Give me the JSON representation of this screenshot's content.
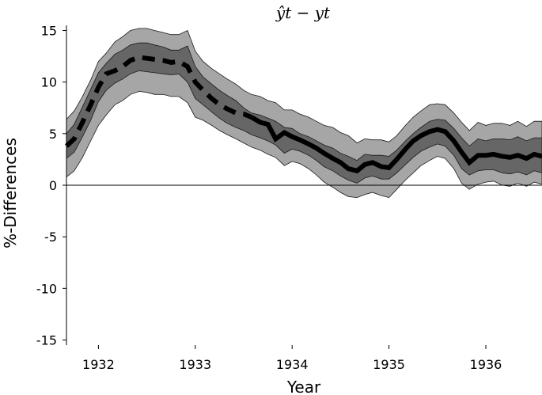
{
  "chart_data": {
    "type": "line",
    "title": "ŷt − yt",
    "xlabel": "Year",
    "ylabel": "%-Differences",
    "xlim": [
      1931.67,
      1936.58
    ],
    "ylim": [
      -15.5,
      15.5
    ],
    "x_ticks": [
      1932,
      1933,
      1934,
      1935,
      1936
    ],
    "x_tick_labels": [
      "1932",
      "1933",
      "1934",
      "1935",
      "1936"
    ],
    "y_ticks": [
      15,
      10,
      5,
      0,
      -5,
      -10,
      -15
    ],
    "y_tick_labels": [
      "15",
      "10",
      "5",
      "0",
      "-5",
      "-10",
      "-15"
    ],
    "zero_line": true,
    "grid": false,
    "band_colors": {
      "outer": "#a6a6a6",
      "inner": "#666666",
      "edge": "#1a1a1a"
    },
    "x": [
      1931.67,
      1931.75,
      1931.83,
      1931.92,
      1932.0,
      1932.08,
      1932.17,
      1932.25,
      1932.33,
      1932.42,
      1932.5,
      1932.58,
      1932.67,
      1932.75,
      1932.83,
      1932.92,
      1933.0,
      1933.08,
      1933.17,
      1933.25,
      1933.33,
      1933.42,
      1933.5,
      1933.58,
      1933.67,
      1933.75,
      1933.83,
      1933.92,
      1934.0,
      1934.08,
      1934.17,
      1934.25,
      1934.33,
      1934.42,
      1934.5,
      1934.58,
      1934.67,
      1934.75,
      1934.83,
      1934.92,
      1935.0,
      1935.08,
      1935.17,
      1935.25,
      1935.33,
      1935.42,
      1935.5,
      1935.58,
      1935.67,
      1935.75,
      1935.83,
      1935.92,
      1936.0,
      1936.08,
      1936.17,
      1936.25,
      1936.33,
      1936.42,
      1936.5,
      1936.58
    ],
    "series": [
      {
        "role": "band_outer_upper",
        "values": [
          6.4,
          7.2,
          8.5,
          10.2,
          12.0,
          12.8,
          13.9,
          14.4,
          15.0,
          15.2,
          15.2,
          15.0,
          14.8,
          14.6,
          14.6,
          15.0,
          13.0,
          12.0,
          11.3,
          10.8,
          10.3,
          9.8,
          9.2,
          8.8,
          8.6,
          8.2,
          8.0,
          7.3,
          7.3,
          6.9,
          6.6,
          6.2,
          5.8,
          5.6,
          5.1,
          4.8,
          4.1,
          4.5,
          4.4,
          4.4,
          4.2,
          4.8,
          5.8,
          6.6,
          7.2,
          7.8,
          7.9,
          7.8,
          7.0,
          6.1,
          5.3,
          6.1,
          5.8,
          6.0,
          6.0,
          5.8,
          6.2,
          5.7,
          6.2,
          6.2
        ]
      },
      {
        "role": "band_inner_upper",
        "values": [
          5.0,
          5.9,
          7.5,
          9.3,
          10.9,
          11.8,
          12.7,
          13.1,
          13.6,
          13.8,
          13.8,
          13.6,
          13.4,
          13.1,
          13.1,
          13.5,
          11.5,
          10.5,
          9.8,
          9.2,
          8.7,
          8.2,
          7.5,
          7.0,
          6.8,
          6.5,
          6.2,
          5.6,
          5.5,
          5.0,
          4.7,
          4.3,
          3.9,
          3.6,
          3.1,
          2.8,
          2.4,
          3.0,
          2.9,
          2.9,
          2.8,
          3.4,
          4.3,
          5.0,
          5.6,
          6.2,
          6.4,
          6.3,
          5.5,
          4.6,
          3.8,
          4.5,
          4.3,
          4.5,
          4.5,
          4.4,
          4.7,
          4.3,
          4.6,
          4.6
        ]
      },
      {
        "role": "median",
        "values": [
          3.8,
          4.5,
          6.0,
          7.8,
          9.5,
          10.8,
          11.1,
          11.5,
          12.1,
          12.4,
          12.3,
          12.2,
          12.1,
          11.9,
          12.0,
          11.5,
          10.0,
          9.2,
          8.4,
          7.8,
          7.4,
          7.0,
          6.9,
          6.6,
          6.1,
          5.9,
          4.5,
          5.1,
          4.7,
          4.4,
          4.0,
          3.6,
          3.1,
          2.6,
          2.2,
          1.6,
          1.4,
          2.0,
          2.2,
          1.8,
          1.7,
          2.5,
          3.5,
          4.3,
          4.8,
          5.2,
          5.4,
          5.2,
          4.3,
          3.2,
          2.2,
          2.9,
          2.9,
          3.0,
          2.8,
          2.7,
          2.9,
          2.6,
          3.0,
          2.8
        ]
      },
      {
        "role": "band_inner_lower",
        "values": [
          2.6,
          3.2,
          4.6,
          6.3,
          8.1,
          9.2,
          9.9,
          10.3,
          10.8,
          11.1,
          11.0,
          10.9,
          10.8,
          10.7,
          10.8,
          10.0,
          8.4,
          7.8,
          7.1,
          6.5,
          6.0,
          5.6,
          5.3,
          4.9,
          4.6,
          4.3,
          3.9,
          3.1,
          3.5,
          3.3,
          2.9,
          2.4,
          1.8,
          1.4,
          0.9,
          0.5,
          0.2,
          0.7,
          0.9,
          0.6,
          0.6,
          1.2,
          2.0,
          2.7,
          3.3,
          3.7,
          4.0,
          3.8,
          2.9,
          1.6,
          1.0,
          1.4,
          1.5,
          1.5,
          1.2,
          1.1,
          1.3,
          1.0,
          1.4,
          1.2
        ]
      },
      {
        "role": "band_outer_lower",
        "values": [
          0.8,
          1.4,
          2.6,
          4.3,
          5.8,
          6.8,
          7.8,
          8.2,
          8.8,
          9.1,
          9.0,
          8.8,
          8.8,
          8.6,
          8.6,
          8.0,
          6.6,
          6.3,
          5.8,
          5.3,
          4.9,
          4.5,
          4.1,
          3.7,
          3.4,
          3.0,
          2.7,
          1.9,
          2.3,
          2.1,
          1.6,
          1.0,
          0.3,
          -0.2,
          -0.7,
          -1.1,
          -1.2,
          -0.9,
          -0.7,
          -1.0,
          -1.2,
          -0.4,
          0.5,
          1.2,
          1.9,
          2.4,
          2.8,
          2.6,
          1.6,
          0.2,
          -0.4,
          0.1,
          0.3,
          0.4,
          0.0,
          -0.1,
          0.2,
          -0.1,
          0.3,
          0.1
        ]
      }
    ]
  }
}
